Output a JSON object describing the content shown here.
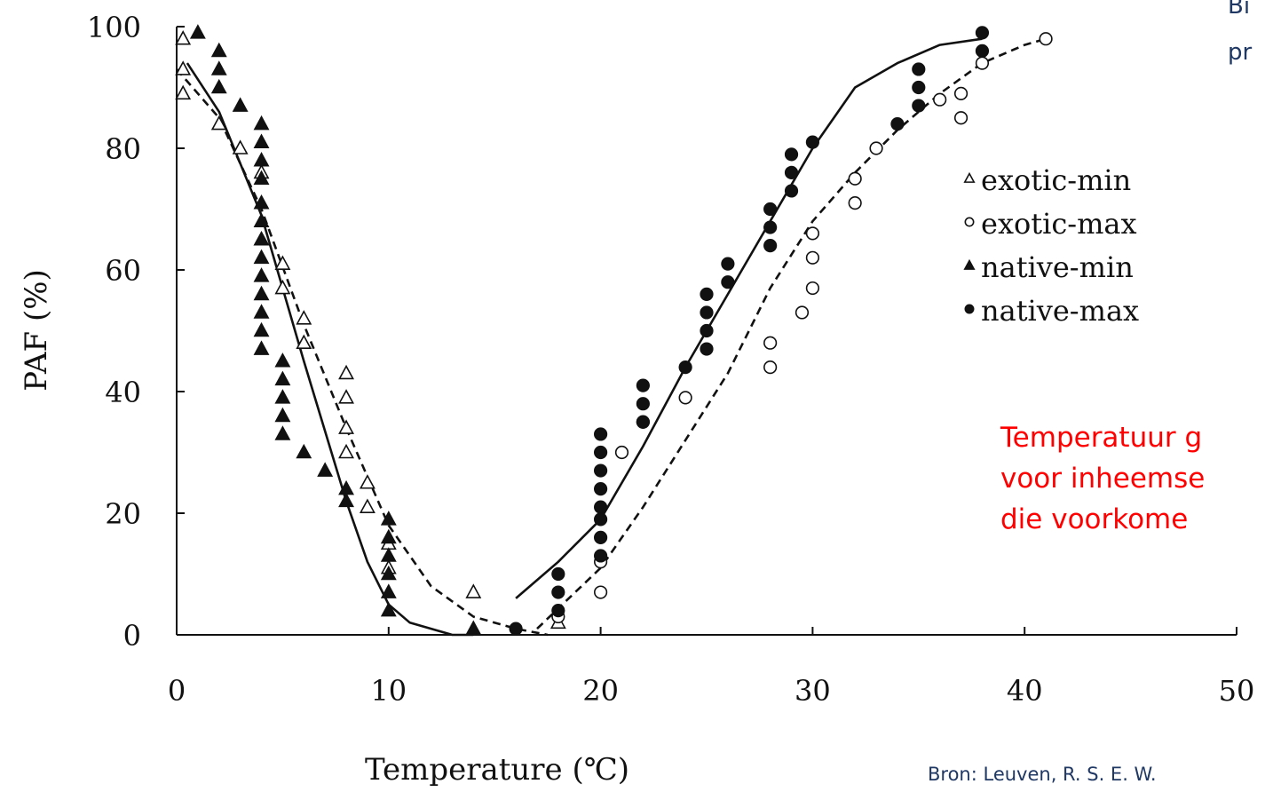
{
  "chart_data": {
    "type": "scatter",
    "xlabel": "Temperature (℃)",
    "ylabel": "PAF (%)",
    "xlim": [
      0,
      50
    ],
    "ylim": [
      0,
      100
    ],
    "xticks": [
      0,
      10,
      20,
      30,
      40,
      50
    ],
    "yticks": [
      0,
      20,
      40,
      60,
      80,
      100
    ],
    "grid": false,
    "legend_position": "right",
    "legend": [
      "exotic-min",
      "exotic-max",
      "native-min",
      "native-max"
    ],
    "series": [
      {
        "name": "exotic-min",
        "marker": "open-triangle",
        "points": [
          [
            0.3,
            98
          ],
          [
            0.3,
            93
          ],
          [
            0.3,
            89
          ],
          [
            2,
            84
          ],
          [
            3,
            80
          ],
          [
            4,
            76
          ],
          [
            4,
            65
          ],
          [
            5,
            61
          ],
          [
            5,
            57
          ],
          [
            6,
            52
          ],
          [
            6,
            48
          ],
          [
            8,
            43
          ],
          [
            8,
            39
          ],
          [
            8,
            34
          ],
          [
            8,
            30
          ],
          [
            9,
            25
          ],
          [
            9,
            21
          ],
          [
            10,
            15
          ],
          [
            10,
            11
          ],
          [
            14,
            7
          ],
          [
            18,
            2
          ]
        ]
      },
      {
        "name": "exotic-max",
        "marker": "open-circle",
        "points": [
          [
            18,
            3
          ],
          [
            20,
            12
          ],
          [
            20,
            7
          ],
          [
            21,
            30
          ],
          [
            22,
            35
          ],
          [
            24,
            39
          ],
          [
            28,
            48
          ],
          [
            28,
            44
          ],
          [
            29.5,
            53
          ],
          [
            30,
            66
          ],
          [
            30,
            62
          ],
          [
            30,
            57
          ],
          [
            32,
            75
          ],
          [
            32,
            71
          ],
          [
            33,
            80
          ],
          [
            36,
            88
          ],
          [
            37,
            89
          ],
          [
            37,
            85
          ],
          [
            38,
            94
          ],
          [
            41,
            98
          ]
        ]
      },
      {
        "name": "native-min",
        "marker": "filled-triangle",
        "points": [
          [
            1,
            99
          ],
          [
            2,
            96
          ],
          [
            2,
            93
          ],
          [
            2,
            90
          ],
          [
            3,
            87
          ],
          [
            4,
            84
          ],
          [
            4,
            81
          ],
          [
            4,
            78
          ],
          [
            4,
            75
          ],
          [
            4,
            71
          ],
          [
            4,
            68
          ],
          [
            4,
            65
          ],
          [
            4,
            62
          ],
          [
            4,
            59
          ],
          [
            4,
            56
          ],
          [
            4,
            53
          ],
          [
            4,
            50
          ],
          [
            4,
            47
          ],
          [
            5,
            45
          ],
          [
            5,
            42
          ],
          [
            5,
            39
          ],
          [
            5,
            36
          ],
          [
            5,
            33
          ],
          [
            6,
            30
          ],
          [
            7,
            27
          ],
          [
            8,
            24
          ],
          [
            8,
            22
          ],
          [
            10,
            19
          ],
          [
            10,
            16
          ],
          [
            10,
            13
          ],
          [
            10,
            10
          ],
          [
            10,
            7
          ],
          [
            10,
            4
          ],
          [
            14,
            1
          ]
        ]
      },
      {
        "name": "native-max",
        "marker": "filled-circle",
        "points": [
          [
            16,
            1
          ],
          [
            18,
            10
          ],
          [
            18,
            7
          ],
          [
            18,
            4
          ],
          [
            20,
            33
          ],
          [
            20,
            30
          ],
          [
            20,
            27
          ],
          [
            20,
            24
          ],
          [
            20,
            21
          ],
          [
            20,
            19
          ],
          [
            20,
            16
          ],
          [
            20,
            13
          ],
          [
            22,
            41
          ],
          [
            22,
            38
          ],
          [
            22,
            35
          ],
          [
            24,
            44
          ],
          [
            25,
            56
          ],
          [
            25,
            53
          ],
          [
            25,
            50
          ],
          [
            25,
            47
          ],
          [
            26,
            61
          ],
          [
            26,
            58
          ],
          [
            28,
            70
          ],
          [
            28,
            67
          ],
          [
            28,
            64
          ],
          [
            29,
            79
          ],
          [
            29,
            76
          ],
          [
            29,
            73
          ],
          [
            30,
            81
          ],
          [
            34,
            84
          ],
          [
            35,
            93
          ],
          [
            35,
            90
          ],
          [
            35,
            87
          ],
          [
            38,
            99
          ],
          [
            38,
            96
          ]
        ]
      }
    ],
    "fit_curves": [
      {
        "name": "exotic-min",
        "style": "dashed",
        "x": [
          0,
          2,
          4,
          6,
          8,
          10,
          12,
          14,
          16,
          17.5
        ],
        "y": [
          93,
          85,
          70,
          51,
          34,
          18,
          8,
          3,
          1,
          0
        ]
      },
      {
        "name": "native-min",
        "style": "solid",
        "x": [
          0.5,
          2,
          4,
          6,
          8,
          9,
          10,
          11,
          12,
          13,
          14
        ],
        "y": [
          94,
          86,
          69,
          45,
          22,
          12,
          5,
          2,
          1,
          0,
          0
        ]
      },
      {
        "name": "exotic-max",
        "style": "dashed",
        "x": [
          17,
          20,
          22,
          24,
          26,
          28,
          30,
          32,
          34,
          36,
          38,
          40,
          41
        ],
        "y": [
          1,
          11,
          21,
          32,
          43,
          57,
          68,
          76,
          83,
          89,
          94,
          97,
          98
        ]
      },
      {
        "name": "native-max",
        "style": "solid",
        "x": [
          16,
          18,
          20,
          22,
          24,
          26,
          28,
          30,
          32,
          34,
          36,
          38
        ],
        "y": [
          6,
          12,
          19,
          31,
          44,
          56,
          68,
          80,
          90,
          94,
          97,
          98
        ]
      }
    ]
  },
  "overlay": {
    "top_right_lines": [
      "Bi",
      "pr"
    ],
    "red_note_lines": [
      "Temperatuur g",
      "voor inheemse",
      "die voorkome"
    ],
    "source": "Bron: Leuven, R. S. E. W."
  }
}
